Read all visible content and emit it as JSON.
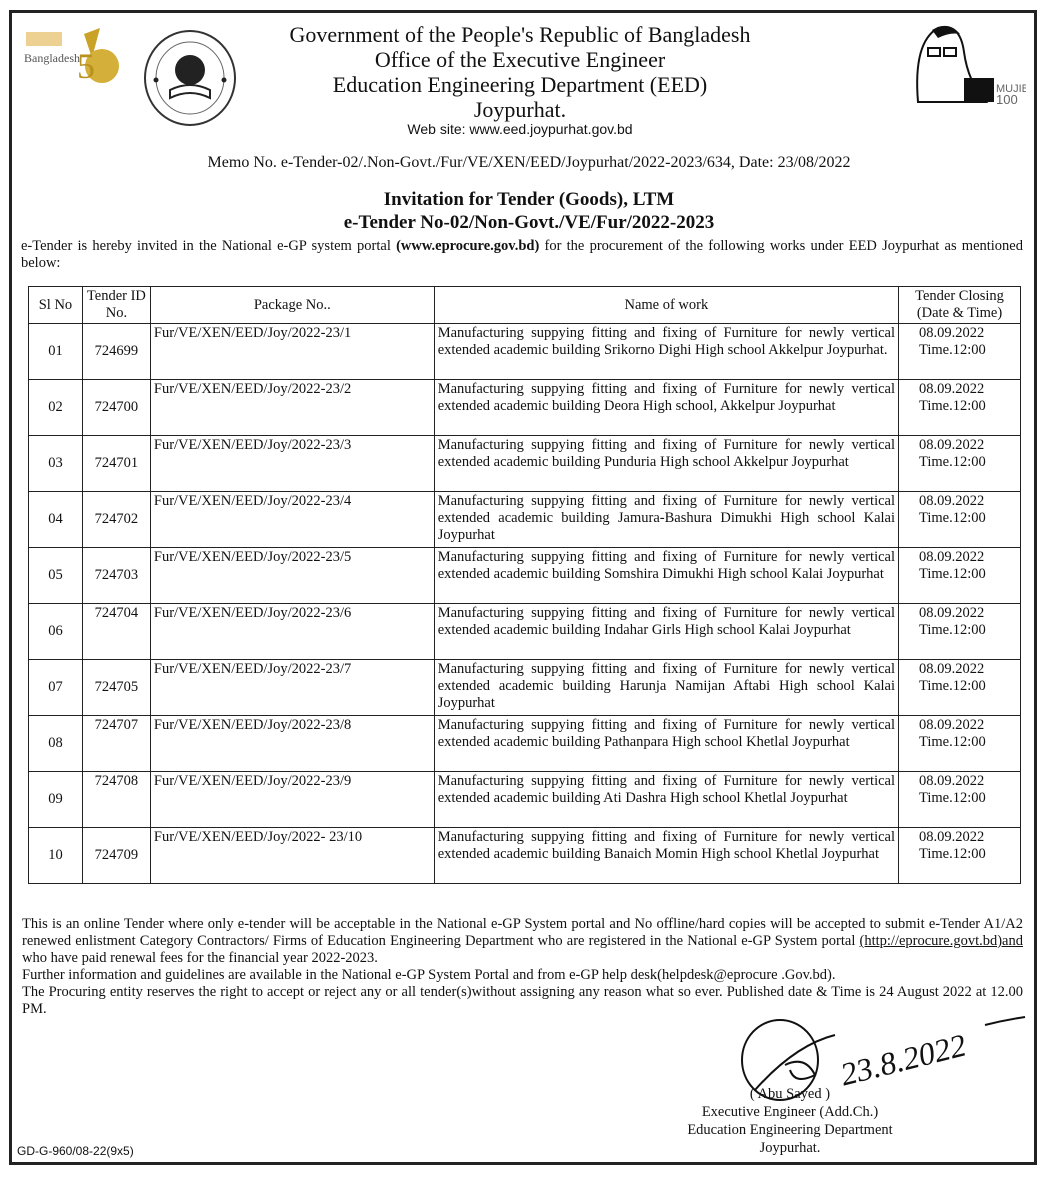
{
  "header": {
    "logo_left_text": "Bangladesh",
    "line1": "Government of the People's Republic of Bangladesh",
    "line2": "Office of the Executive Engineer",
    "line3": "Education Engineering Department (EED)",
    "line4": "Joypurhat.",
    "website": "Web site: www.eed.joypurhat.gov.bd",
    "portrait_text": "MUJIB 100"
  },
  "memo": "Memo No.  e-Tender-02/.Non-Govt./Fur/VE/XEN/EED/Joypurhat/2022-2023/634, Date: 23/08/2022",
  "title1": "Invitation for Tender (Goods), LTM",
  "title2": "e-Tender No-02/Non-Govt./VE/Fur/2022-2023",
  "intro": {
    "before": "e-Tender is hereby invited in the National e-GP system portal ",
    "bold": "(www.eprocure.gov.bd)",
    "after": " for the procurement of the following works under EED Joypurhat as mentioned below:"
  },
  "table": {
    "headers": [
      "Sl No",
      "Tender ID No.",
      "Package No..",
      "Name of work",
      "Tender Closing (Date & Time)"
    ],
    "rows": [
      {
        "sl": "01",
        "id": "724699",
        "pkg": "Fur/VE/XEN/EED/Joy/2022-23/1",
        "work": "Manufacturing suppying fitting and fixing of Furniture for newly vertical extended academic building Srikorno Dighi High school Akkelpur Joypurhat.",
        "date": "08.09.2022",
        "time": "Time.12:00"
      },
      {
        "sl": "02",
        "id": "724700",
        "pkg": "Fur/VE/XEN/EED/Joy/2022-23/2",
        "work": "Manufacturing suppying fitting and fixing of Furniture for newly vertical extended academic building Deora High school, Akkelpur Joypurhat",
        "date": "08.09.2022",
        "time": "Time.12:00"
      },
      {
        "sl": "03",
        "id": "724701",
        "pkg": "Fur/VE/XEN/EED/Joy/2022-23/3",
        "work": "Manufacturing suppying fitting and fixing of Furniture for newly vertical extended academic building Punduria High school Akkelpur Joypurhat",
        "date": "08.09.2022",
        "time": "Time.12:00"
      },
      {
        "sl": "04",
        "id": "724702",
        "pkg": "Fur/VE/XEN/EED/Joy/2022-23/4",
        "work": "Manufacturing suppying fitting and fixing of Furniture for newly vertical extended academic building Jamura-Bashura Dimukhi High school Kalai Joypurhat",
        "date": "08.09.2022",
        "time": "Time.12:00"
      },
      {
        "sl": "05",
        "id": "724703",
        "pkg": "Fur/VE/XEN/EED/Joy/2022-23/5",
        "work": "Manufacturing suppying fitting and fixing of Furniture for newly vertical extended academic building Somshira Dimukhi High school Kalai Joypurhat",
        "date": "08.09.2022",
        "time": "Time.12:00"
      },
      {
        "sl": "06",
        "id": "724704",
        "pkg": "Fur/VE/XEN/EED/Joy/2022-23/6",
        "work": "Manufacturing suppying fitting and fixing of Furniture for newly vertical extended academic building Indahar Girls High school Kalai Joypurhat",
        "date": "08.09.2022",
        "time": "Time.12:00"
      },
      {
        "sl": "07",
        "id": "724705",
        "pkg": "Fur/VE/XEN/EED/Joy/2022-23/7",
        "work": "Manufacturing suppying fitting and fixing of Furniture for newly vertical extended academic building Harunja Namijan Aftabi High school Kalai Joypurhat",
        "date": "08.09.2022",
        "time": "Time.12:00"
      },
      {
        "sl": "08",
        "id": "724707",
        "pkg": "Fur/VE/XEN/EED/Joy/2022-23/8",
        "work": "Manufacturing suppying fitting and fixing of Furniture for newly vertical extended academic building Pathanpara High school Khetlal Joypurhat",
        "date": "08.09.2022",
        "time": "Time.12:00"
      },
      {
        "sl": "09",
        "id": "724708",
        "pkg": "Fur/VE/XEN/EED/Joy/2022-23/9",
        "work": "Manufacturing suppying fitting and fixing of Furniture for newly vertical extended academic building Ati Dashra High school Khetlal Joypurhat",
        "date": "08.09.2022",
        "time": "Time.12:00"
      },
      {
        "sl": "10",
        "id": "724709",
        "pkg": "Fur/VE/XEN/EED/Joy/2022- 23/10",
        "work": "Manufacturing suppying fitting and fixing of Furniture for newly vertical extended academic building Banaich Momin High school Khetlal Joypurhat",
        "date": "08.09.2022",
        "time": "Time.12:00"
      }
    ]
  },
  "notes": {
    "p1_before": "This is an online Tender where only e-tender  will be acceptable in the National e-GP System portal and No offline/hard copies will be accepted to submit  e-Tender A1/A2 renewed  enlistment Category  Contractors/ Firms of Education Engineering Department who are registered in the National e-GP System portal ",
    "p1_link": "(http://eprocure.govt.bd)and",
    "p1_after": " who have paid renewal fees for the financial year 2022-2023.",
    "p2": "Further information and guidelines are available in the National e-GP System Portal and from e-GP help desk(helpdesk@eprocure .Gov.bd).",
    "p3": "The  Procuring entity reserves the right to accept or reject any or all tender(s)without assigning any reason what so ever. Published date & Time is 24 August 2022 at 12.00 PM."
  },
  "signature": {
    "handwritten_date": "23.8.2022",
    "name": "( Abu Sayed )",
    "title": "Executive Engineer (Add.Ch.)",
    "dept": "Education Engineering Department",
    "place": "Joypurhat."
  },
  "footer_code": "GD-G-960/08-22(9x5)"
}
